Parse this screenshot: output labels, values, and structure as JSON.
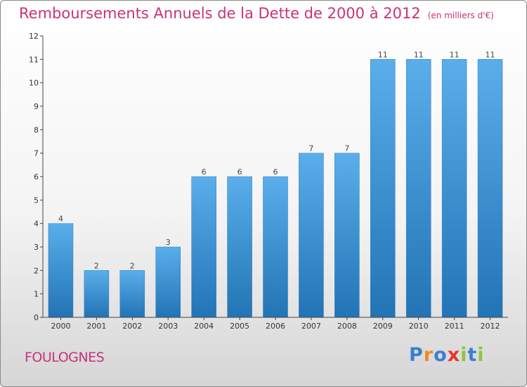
{
  "header": {
    "title": "Remboursements Annuels de la Dette de 2000 à 2012",
    "unit": "(en milliers d'€)"
  },
  "footer": {
    "place": "FOULOGNES",
    "logo": {
      "letters": [
        "P",
        "r",
        "o",
        "x",
        "i",
        "t",
        "i"
      ],
      "colors": [
        "#3a7fd5",
        "#f08a1c",
        "#3a7fd5",
        "#e8332b",
        "#8cc63f",
        "#3a7fd5",
        "#8cc63f"
      ]
    }
  },
  "chart_data": {
    "type": "bar",
    "title": "Remboursements Annuels de la Dette de 2000 à 2012",
    "subtitle": "(en milliers d'€)",
    "categories": [
      "2000",
      "2001",
      "2002",
      "2003",
      "2004",
      "2005",
      "2006",
      "2007",
      "2008",
      "2009",
      "2010",
      "2011",
      "2012"
    ],
    "values": [
      4,
      2,
      2,
      3,
      6,
      6,
      6,
      7,
      7,
      11,
      11,
      11,
      11
    ],
    "ylim": [
      0,
      12
    ],
    "yticks": [
      "0",
      "1",
      "2",
      "3",
      "4",
      "5",
      "6",
      "7",
      "8",
      "9",
      "10",
      "11",
      "12"
    ],
    "grid": false,
    "bar_color": "#3a8fd8"
  }
}
